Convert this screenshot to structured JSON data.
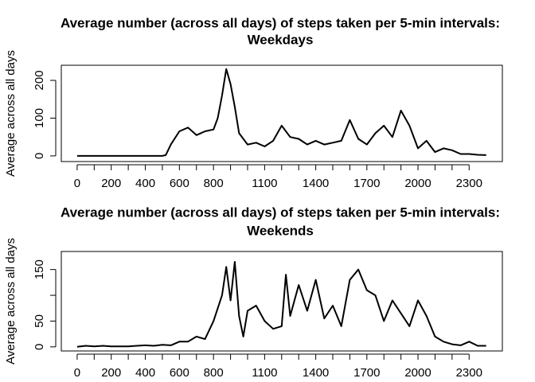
{
  "chart_data": [
    {
      "type": "line",
      "title": [
        "Average number (across all days) of steps taken per 5-min intervals:",
        "Weekdays"
      ],
      "y_label": "Average across all days",
      "x": [
        0,
        50,
        100,
        150,
        200,
        250,
        300,
        350,
        400,
        450,
        500,
        520,
        550,
        600,
        650,
        700,
        750,
        800,
        825,
        850,
        875,
        900,
        925,
        950,
        1000,
        1050,
        1100,
        1150,
        1200,
        1250,
        1300,
        1350,
        1400,
        1450,
        1500,
        1550,
        1600,
        1650,
        1700,
        1750,
        1800,
        1850,
        1900,
        1950,
        2000,
        2050,
        2100,
        2150,
        2200,
        2250,
        2300,
        2350,
        2400
      ],
      "series": [
        {
          "name": "Weekdays",
          "color": "#000000",
          "values": [
            0,
            0,
            0,
            0,
            0,
            0,
            0,
            0,
            0,
            0,
            0,
            2,
            30,
            65,
            75,
            55,
            65,
            70,
            100,
            160,
            230,
            190,
            130,
            60,
            30,
            35,
            25,
            40,
            80,
            50,
            45,
            30,
            40,
            30,
            35,
            40,
            95,
            45,
            30,
            60,
            80,
            50,
            120,
            80,
            20,
            40,
            10,
            20,
            15,
            5,
            5,
            3,
            2
          ]
        }
      ],
      "xlim": [
        -93,
        2495
      ],
      "ylim": [
        -15,
        240
      ],
      "xticks": [
        0,
        200,
        400,
        600,
        800,
        1100,
        1400,
        1700,
        2000,
        2300
      ],
      "xminorticks": [
        100,
        300,
        500,
        700,
        900,
        1000,
        1200,
        1300,
        1500,
        1600,
        1800,
        1900,
        2100,
        2200
      ],
      "yticks": [
        0,
        100,
        200
      ],
      "yminorticks": []
    },
    {
      "type": "line",
      "title": [
        "Average number (across all days) of steps taken per 5-min intervals:",
        "Weekends"
      ],
      "y_label": "Average across all days",
      "x": [
        0,
        50,
        100,
        150,
        200,
        250,
        300,
        350,
        400,
        450,
        500,
        550,
        600,
        650,
        700,
        750,
        800,
        850,
        875,
        900,
        925,
        950,
        975,
        1000,
        1050,
        1100,
        1150,
        1200,
        1225,
        1250,
        1300,
        1350,
        1400,
        1450,
        1500,
        1550,
        1600,
        1650,
        1700,
        1750,
        1800,
        1850,
        1900,
        1950,
        2000,
        2050,
        2100,
        2150,
        2200,
        2250,
        2300,
        2350,
        2400
      ],
      "series": [
        {
          "name": "Weekends",
          "color": "#000000",
          "values": [
            0,
            2,
            1,
            2,
            1,
            1,
            1,
            2,
            3,
            2,
            4,
            3,
            10,
            10,
            20,
            15,
            50,
            100,
            155,
            90,
            165,
            60,
            20,
            70,
            80,
            50,
            35,
            40,
            140,
            60,
            120,
            70,
            130,
            55,
            80,
            40,
            130,
            150,
            110,
            100,
            50,
            90,
            65,
            40,
            90,
            60,
            20,
            10,
            5,
            3,
            10,
            2,
            2
          ]
        }
      ],
      "xlim": [
        -93,
        2495
      ],
      "ylim": [
        -8,
        185
      ],
      "xticks": [
        0,
        200,
        400,
        600,
        800,
        1100,
        1400,
        1700,
        2000,
        2300
      ],
      "xminorticks": [
        100,
        300,
        500,
        700,
        900,
        1000,
        1200,
        1300,
        1500,
        1600,
        1800,
        1900,
        2100,
        2200
      ],
      "yticks": [
        0,
        50,
        150
      ],
      "yminorticks": [
        100
      ]
    }
  ]
}
